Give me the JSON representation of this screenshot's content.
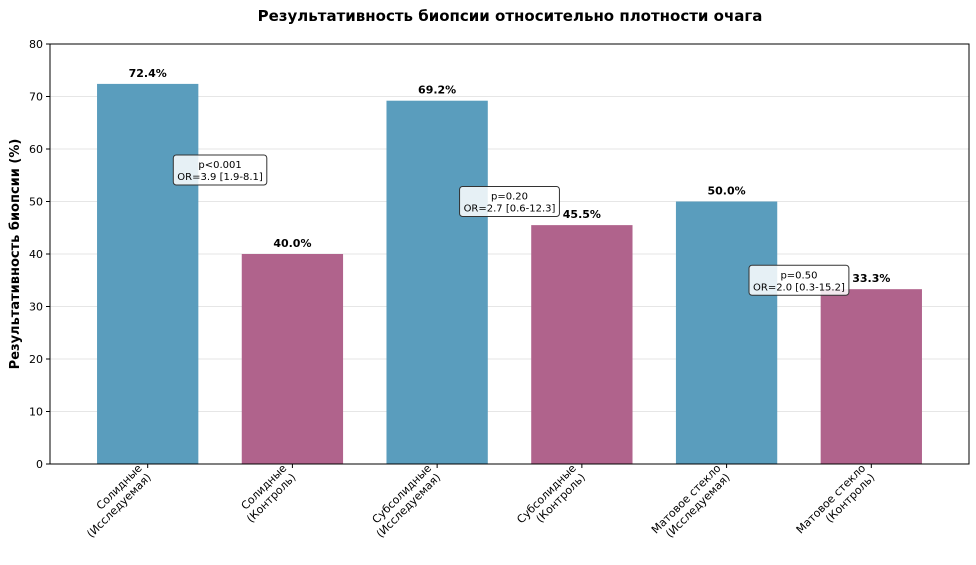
{
  "chart_data": {
    "type": "bar",
    "title": "Результативность биопсии относительно плотности очага",
    "xlabel": "",
    "ylabel": "Результативность биопсии (%)",
    "ylim": [
      0,
      80
    ],
    "yticks": [
      0,
      10,
      20,
      30,
      40,
      50,
      60,
      70,
      80
    ],
    "grid": true,
    "categories": [
      [
        "Солидные",
        "(Исследуемая)"
      ],
      [
        "Солидные",
        "(Контроль)"
      ],
      [
        "Субсолидные",
        "(Исследуемая)"
      ],
      [
        "Субсолидные",
        "(Контроль)"
      ],
      [
        "Матовое стекло",
        "(Исследуемая)"
      ],
      [
        "Матовое стекло",
        "(Контроль)"
      ]
    ],
    "values": [
      72.4,
      40.0,
      69.2,
      45.5,
      50.0,
      33.3
    ],
    "value_labels": [
      "72.4%",
      "40.0%",
      "69.2%",
      "45.5%",
      "50.0%",
      "33.3%"
    ],
    "groups": [
      "study",
      "control",
      "study",
      "control",
      "study",
      "control"
    ],
    "colors": {
      "study": "#5a9dbd",
      "control": "#b0638c"
    },
    "annotations": [
      {
        "pair": [
          0,
          1
        ],
        "y": 56,
        "lines": [
          "p<0.001",
          "OR=3.9 [1.9-8.1]"
        ]
      },
      {
        "pair": [
          2,
          3
        ],
        "y": 50,
        "lines": [
          "p=0.20",
          "OR=2.7 [0.6-12.3]"
        ]
      },
      {
        "pair": [
          4,
          5
        ],
        "y": 35,
        "lines": [
          "p=0.50",
          "OR=2.0 [0.3-15.2]"
        ]
      }
    ]
  }
}
